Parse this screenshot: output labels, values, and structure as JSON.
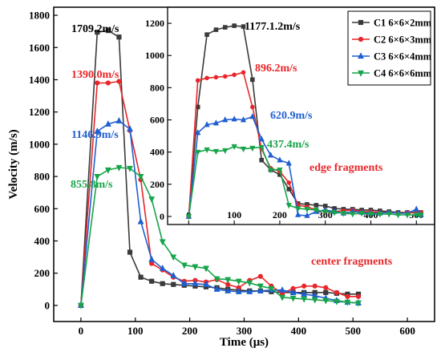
{
  "chart_data": [
    {
      "type": "line",
      "title": "",
      "xlabel": "Time (μs)",
      "ylabel": "Velocity (m/s)",
      "xlim": [
        -50,
        650
      ],
      "ylim": [
        -100,
        1850
      ],
      "xticks": [
        "0",
        "100",
        "200",
        "300",
        "400",
        "500",
        "600"
      ],
      "yticks": [
        "0",
        "200",
        "400",
        "600",
        "800",
        "1000",
        "1200",
        "1400",
        "1600",
        "1800"
      ],
      "series": [
        {
          "name": "C1 6×6×2mm",
          "color": "#3a3a3a",
          "marker": "square",
          "points": [
            [
              0,
              0
            ],
            [
              30,
              1695
            ],
            [
              50,
              1705
            ],
            [
              70,
              1665
            ],
            [
              90,
              330
            ],
            [
              110,
              175
            ],
            [
              130,
              150
            ],
            [
              150,
              135
            ],
            [
              170,
              130
            ],
            [
              190,
              125
            ],
            [
              210,
              120
            ],
            [
              230,
              115
            ],
            [
              250,
              110
            ],
            [
              270,
              100
            ],
            [
              290,
              95
            ],
            [
              310,
              90
            ],
            [
              330,
              90
            ],
            [
              350,
              85
            ],
            [
              370,
              80
            ],
            [
              390,
              80
            ],
            [
              410,
              80
            ],
            [
              430,
              80
            ],
            [
              450,
              80
            ],
            [
              470,
              75
            ],
            [
              490,
              70
            ],
            [
              510,
              70
            ]
          ]
        },
        {
          "name": "C2 6×6×3mm",
          "color": "#e8262a",
          "marker": "circle",
          "points": [
            [
              0,
              0
            ],
            [
              30,
              1380
            ],
            [
              50,
              1380
            ],
            [
              70,
              1390
            ],
            [
              90,
              1085
            ],
            [
              110,
              780
            ],
            [
              130,
              260
            ],
            [
              150,
              220
            ],
            [
              170,
              175
            ],
            [
              190,
              150
            ],
            [
              210,
              155
            ],
            [
              230,
              145
            ],
            [
              250,
              160
            ],
            [
              270,
              130
            ],
            [
              290,
              110
            ],
            [
              310,
              155
            ],
            [
              330,
              180
            ],
            [
              350,
              120
            ],
            [
              370,
              75
            ],
            [
              390,
              105
            ],
            [
              410,
              120
            ],
            [
              430,
              120
            ],
            [
              450,
              110
            ],
            [
              470,
              80
            ],
            [
              490,
              55
            ],
            [
              510,
              55
            ]
          ]
        },
        {
          "name": "C3 6×6×4mm",
          "color": "#1f5fd0",
          "marker": "triangle",
          "points": [
            [
              0,
              0
            ],
            [
              30,
              1080
            ],
            [
              50,
              1125
            ],
            [
              70,
              1145
            ],
            [
              90,
              1095
            ],
            [
              110,
              520
            ],
            [
              130,
              285
            ],
            [
              150,
              230
            ],
            [
              170,
              185
            ],
            [
              190,
              135
            ],
            [
              210,
              135
            ],
            [
              230,
              130
            ],
            [
              250,
              100
            ],
            [
              270,
              90
            ],
            [
              290,
              85
            ],
            [
              310,
              85
            ],
            [
              330,
              90
            ],
            [
              350,
              95
            ],
            [
              370,
              95
            ],
            [
              390,
              80
            ],
            [
              410,
              70
            ],
            [
              430,
              60
            ],
            [
              450,
              45
            ],
            [
              470,
              30
            ],
            [
              490,
              20
            ],
            [
              510,
              15
            ]
          ]
        },
        {
          "name": "C4 6×6×6mm",
          "color": "#17a44a",
          "marker": "triangle-down",
          "points": [
            [
              0,
              0
            ],
            [
              30,
              800
            ],
            [
              50,
              840
            ],
            [
              70,
              855
            ],
            [
              90,
              850
            ],
            [
              110,
              800
            ],
            [
              130,
              660
            ],
            [
              150,
              395
            ],
            [
              170,
              300
            ],
            [
              190,
              250
            ],
            [
              210,
              240
            ],
            [
              230,
              230
            ],
            [
              250,
              165
            ],
            [
              270,
              160
            ],
            [
              290,
              150
            ],
            [
              310,
              140
            ],
            [
              330,
              120
            ],
            [
              350,
              105
            ],
            [
              370,
              50
            ],
            [
              390,
              45
            ],
            [
              410,
              40
            ],
            [
              430,
              35
            ],
            [
              450,
              30
            ],
            [
              470,
              25
            ],
            [
              490,
              20
            ],
            [
              510,
              15
            ]
          ]
        }
      ],
      "annotations": [
        {
          "text": "1709.2m/s",
          "color": "#000000"
        },
        {
          "text": "1390.0m/s",
          "color": "#e8262a"
        },
        {
          "text": "1146.9m/s",
          "color": "#1f5fd0"
        },
        {
          "text": "855.8m/s",
          "color": "#17a44a"
        },
        {
          "text": "center fragments",
          "color": "#e8262a"
        }
      ],
      "grid": false
    },
    {
      "type": "line",
      "title": "",
      "xlabel": "",
      "ylabel": "",
      "xlim": [
        -20,
        540
      ],
      "ylim": [
        -50,
        1300
      ],
      "xticks": [
        "0",
        "100",
        "200",
        "300",
        "400",
        "500"
      ],
      "yticks": [
        "0",
        "200",
        "400",
        "600",
        "800",
        "1000",
        "1200"
      ],
      "series": [
        {
          "name": "C1 6×6×2mm",
          "color": "#3a3a3a",
          "marker": "square",
          "points": [
            [
              0,
              0
            ],
            [
              20,
              680
            ],
            [
              40,
              1130
            ],
            [
              60,
              1160
            ],
            [
              80,
              1175
            ],
            [
              100,
              1185
            ],
            [
              120,
              1180
            ],
            [
              140,
              850
            ],
            [
              160,
              350
            ],
            [
              180,
              290
            ],
            [
              200,
              260
            ],
            [
              220,
              170
            ],
            [
              240,
              80
            ],
            [
              260,
              75
            ],
            [
              280,
              70
            ],
            [
              300,
              65
            ],
            [
              320,
              50
            ],
            [
              340,
              45
            ],
            [
              360,
              45
            ],
            [
              380,
              40
            ],
            [
              400,
              40
            ],
            [
              420,
              35
            ],
            [
              440,
              30
            ],
            [
              460,
              25
            ],
            [
              480,
              25
            ],
            [
              500,
              25
            ],
            [
              510,
              25
            ]
          ]
        },
        {
          "name": "C2 6×6×3mm",
          "color": "#e8262a",
          "marker": "circle",
          "points": [
            [
              0,
              0
            ],
            [
              20,
              845
            ],
            [
              40,
              860
            ],
            [
              60,
              865
            ],
            [
              80,
              870
            ],
            [
              100,
              880
            ],
            [
              120,
              895
            ],
            [
              140,
              680
            ],
            [
              160,
              420
            ],
            [
              180,
              300
            ],
            [
              200,
              280
            ],
            [
              220,
              210
            ],
            [
              240,
              70
            ],
            [
              260,
              60
            ],
            [
              280,
              40
            ],
            [
              300,
              30
            ],
            [
              320,
              30
            ],
            [
              340,
              35
            ],
            [
              360,
              40
            ],
            [
              380,
              30
            ],
            [
              400,
              30
            ],
            [
              420,
              25
            ],
            [
              440,
              25
            ],
            [
              460,
              20
            ],
            [
              480,
              25
            ],
            [
              500,
              20
            ],
            [
              510,
              25
            ]
          ]
        },
        {
          "name": "C3 6×6×4mm",
          "color": "#1f5fd0",
          "marker": "triangle",
          "points": [
            [
              0,
              0
            ],
            [
              20,
              520
            ],
            [
              40,
              570
            ],
            [
              60,
              580
            ],
            [
              80,
              600
            ],
            [
              100,
              605
            ],
            [
              120,
              600
            ],
            [
              140,
              620
            ],
            [
              160,
              480
            ],
            [
              180,
              380
            ],
            [
              200,
              350
            ],
            [
              220,
              330
            ],
            [
              240,
              10
            ],
            [
              260,
              5
            ],
            [
              280,
              30
            ],
            [
              300,
              40
            ],
            [
              320,
              30
            ],
            [
              340,
              20
            ],
            [
              360,
              30
            ],
            [
              380,
              25
            ],
            [
              400,
              20
            ],
            [
              420,
              20
            ],
            [
              440,
              25
            ],
            [
              460,
              20
            ],
            [
              480,
              20
            ],
            [
              500,
              45
            ],
            [
              510,
              10
            ]
          ]
        },
        {
          "name": "C4 6×6×6mm",
          "color": "#17a44a",
          "marker": "triangle-down",
          "points": [
            [
              0,
              0
            ],
            [
              20,
              400
            ],
            [
              40,
              415
            ],
            [
              60,
              405
            ],
            [
              80,
              410
            ],
            [
              100,
              435
            ],
            [
              120,
              420
            ],
            [
              140,
              425
            ],
            [
              160,
              430
            ],
            [
              180,
              290
            ],
            [
              200,
              290
            ],
            [
              220,
              70
            ],
            [
              240,
              50
            ],
            [
              260,
              45
            ],
            [
              280,
              40
            ],
            [
              300,
              30
            ],
            [
              320,
              25
            ],
            [
              340,
              20
            ],
            [
              360,
              15
            ],
            [
              380,
              20
            ],
            [
              400,
              15
            ],
            [
              420,
              15
            ],
            [
              440,
              15
            ],
            [
              460,
              10
            ],
            [
              480,
              10
            ],
            [
              500,
              10
            ],
            [
              510,
              10
            ]
          ]
        }
      ],
      "annotations": [
        {
          "text": "1177.1.2m/s",
          "color": "#000000"
        },
        {
          "text": "896.2m/s",
          "color": "#e8262a"
        },
        {
          "text": "620.9m/s",
          "color": "#1f5fd0"
        },
        {
          "text": "437.4m/s",
          "color": "#17a44a"
        },
        {
          "text": "edge fragments",
          "color": "#e8262a"
        }
      ],
      "legend": "top-right",
      "grid": false
    }
  ]
}
